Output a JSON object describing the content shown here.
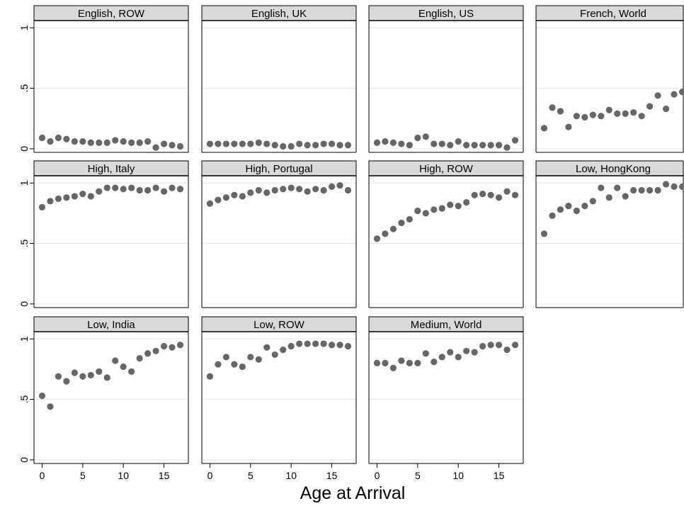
{
  "chart_data": {
    "type": "scatter",
    "xlabel": "Age at Arrival",
    "ylabel": "",
    "xlim": [
      -1,
      18
    ],
    "ylim": [
      -0.03,
      1.06
    ],
    "x_ticks": [
      0,
      5,
      10,
      15
    ],
    "y_ticks": [
      0,
      0.5,
      1
    ],
    "y_tick_labels": [
      "0",
      ".5",
      "1"
    ],
    "grid": true,
    "legend": "none",
    "colors": {
      "marker": "#666666",
      "header_bg": "#d9d9d9",
      "grid": "#e5e5e5",
      "frame": "#000000"
    },
    "x": [
      0,
      1,
      2,
      3,
      4,
      5,
      6,
      7,
      8,
      9,
      10,
      11,
      12,
      13,
      14,
      15,
      16,
      17
    ],
    "panels": [
      {
        "title": "English, ROW",
        "values": [
          0.09,
          0.06,
          0.09,
          0.08,
          0.06,
          0.06,
          0.05,
          0.05,
          0.05,
          0.07,
          0.06,
          0.05,
          0.05,
          0.06,
          0.01,
          0.04,
          0.03,
          0.02
        ]
      },
      {
        "title": "English, UK",
        "values": [
          0.04,
          0.04,
          0.04,
          0.04,
          0.04,
          0.04,
          0.05,
          0.04,
          0.03,
          0.02,
          0.02,
          0.04,
          0.03,
          0.03,
          0.04,
          0.04,
          0.03,
          0.03
        ]
      },
      {
        "title": "English, US",
        "values": [
          0.05,
          0.06,
          0.05,
          0.04,
          0.03,
          0.09,
          0.1,
          0.04,
          0.04,
          0.03,
          0.06,
          0.03,
          0.03,
          0.03,
          0.03,
          0.03,
          0.01,
          0.07
        ]
      },
      {
        "title": "French, World",
        "values": [
          0.17,
          0.34,
          0.31,
          0.18,
          0.27,
          0.26,
          0.28,
          0.27,
          0.32,
          0.29,
          0.29,
          0.3,
          0.27,
          0.35,
          0.44,
          0.33,
          0.45,
          0.47
        ]
      },
      {
        "title": "High, Italy",
        "values": [
          0.8,
          0.85,
          0.87,
          0.88,
          0.89,
          0.91,
          0.89,
          0.93,
          0.96,
          0.96,
          0.95,
          0.96,
          0.94,
          0.94,
          0.96,
          0.93,
          0.96,
          0.95
        ]
      },
      {
        "title": "High, Portugal",
        "values": [
          0.83,
          0.86,
          0.88,
          0.9,
          0.89,
          0.92,
          0.94,
          0.92,
          0.94,
          0.95,
          0.96,
          0.95,
          0.93,
          0.95,
          0.94,
          0.97,
          0.98,
          0.94
        ]
      },
      {
        "title": "High, ROW",
        "values": [
          0.54,
          0.58,
          0.62,
          0.67,
          0.7,
          0.77,
          0.75,
          0.78,
          0.79,
          0.82,
          0.81,
          0.84,
          0.9,
          0.91,
          0.9,
          0.88,
          0.93,
          0.9
        ]
      },
      {
        "title": "Low, HongKong",
        "values": [
          0.58,
          0.73,
          0.78,
          0.81,
          0.77,
          0.81,
          0.85,
          0.96,
          0.88,
          0.96,
          0.89,
          0.94,
          0.94,
          0.94,
          0.94,
          0.99,
          0.97,
          0.97
        ]
      },
      {
        "title": "Low, India",
        "values": [
          0.53,
          0.44,
          0.69,
          0.65,
          0.72,
          0.69,
          0.7,
          0.73,
          0.68,
          0.82,
          0.77,
          0.73,
          0.84,
          0.88,
          0.9,
          0.94,
          0.93,
          0.95
        ]
      },
      {
        "title": "Low, ROW",
        "values": [
          0.69,
          0.79,
          0.85,
          0.79,
          0.77,
          0.85,
          0.83,
          0.93,
          0.87,
          0.91,
          0.94,
          0.96,
          0.96,
          0.96,
          0.96,
          0.95,
          0.95,
          0.94
        ]
      },
      {
        "title": "Medium, World",
        "values": [
          0.8,
          0.8,
          0.76,
          0.82,
          0.8,
          0.8,
          0.88,
          0.81,
          0.85,
          0.89,
          0.85,
          0.9,
          0.89,
          0.94,
          0.95,
          0.95,
          0.91,
          0.95
        ]
      }
    ]
  }
}
